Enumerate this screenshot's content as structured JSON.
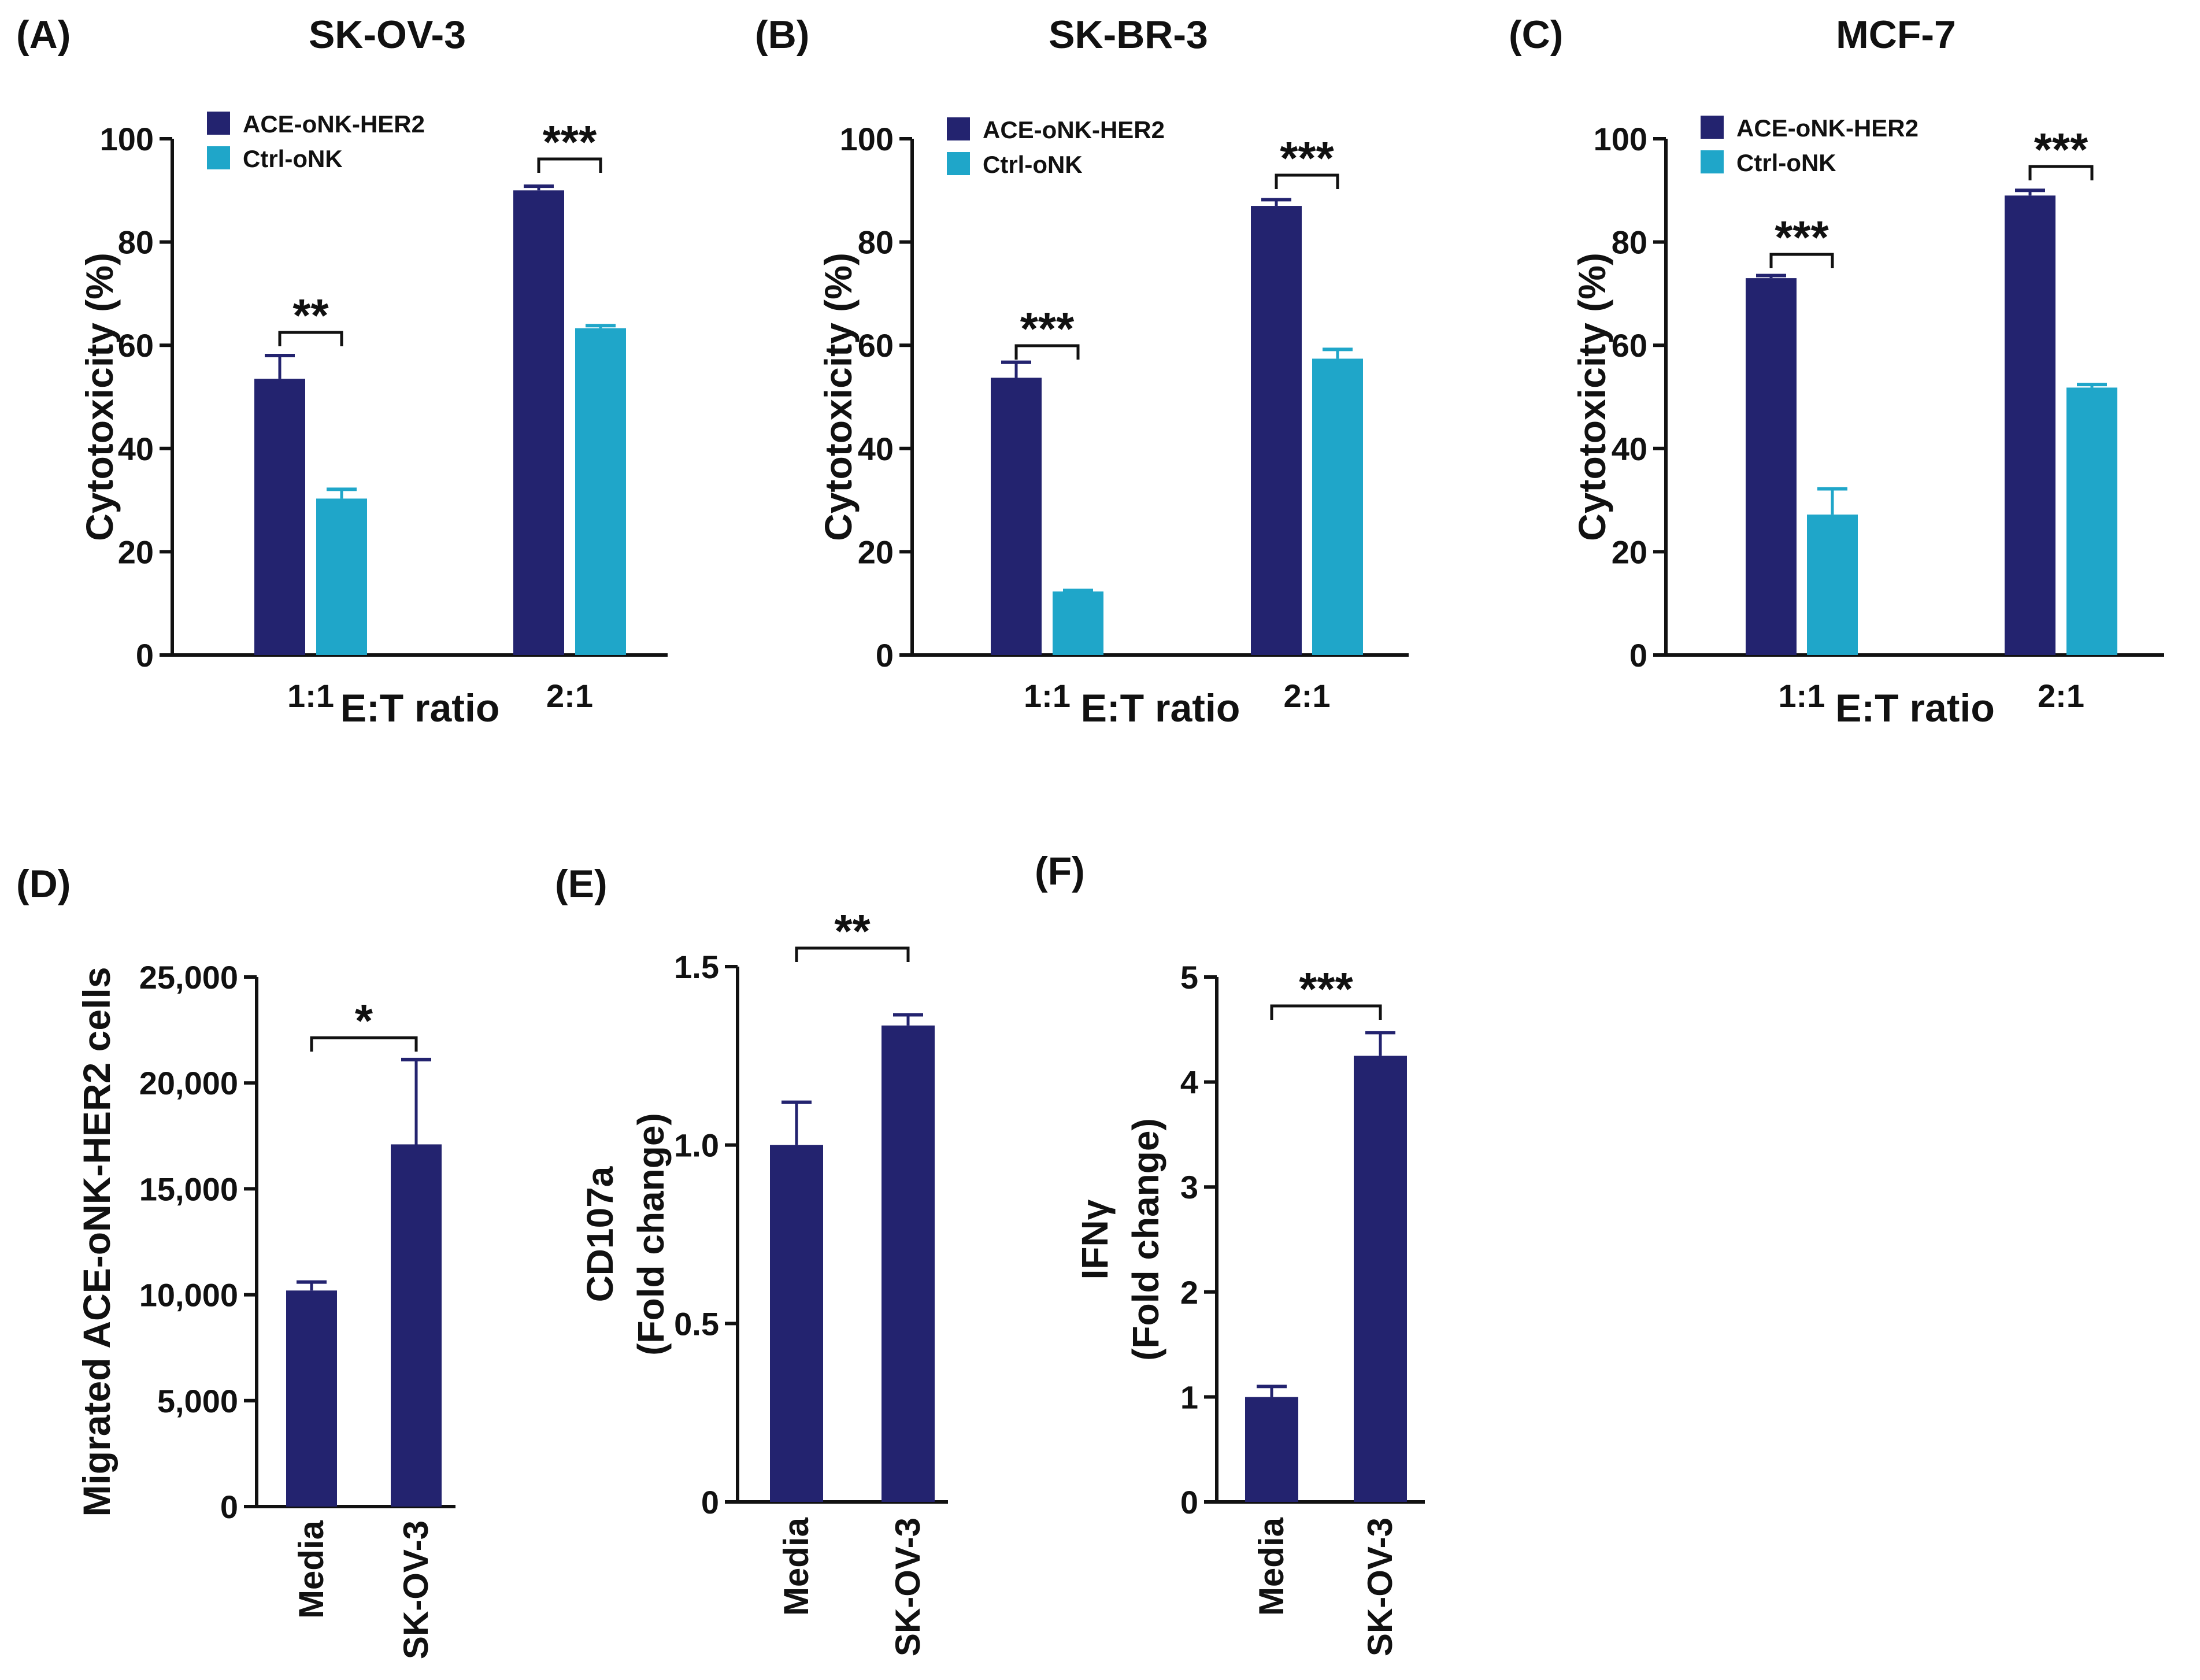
{
  "colors": {
    "ace": "#23236f",
    "ctrl": "#1fa6c9",
    "axis": "#111111"
  },
  "chart_data": [
    {
      "type": "bar",
      "panel_label": "(A)",
      "title": "SK-OV-3",
      "xlabel": "E:T ratio",
      "ylabel": "Cytotoxicity (%)",
      "categories": [
        "1:1",
        "2:1"
      ],
      "ylim": [
        0,
        100
      ],
      "yticks": [
        "0",
        "20",
        "40",
        "60",
        "80",
        "100"
      ],
      "series": [
        {
          "name": "ACE-oNK-HER2",
          "values": [
            53.5,
            90
          ],
          "errors": [
            4.5,
            0.8
          ]
        },
        {
          "name": "Ctrl-oNK",
          "values": [
            30.3,
            63.3
          ],
          "errors": [
            1.8,
            0.5
          ]
        }
      ],
      "significance": [
        "**",
        "***"
      ]
    },
    {
      "type": "bar",
      "panel_label": "(B)",
      "title": "SK-BR-3",
      "xlabel": "E:T ratio",
      "ylabel": "Cytotoxicity (%)",
      "categories": [
        "1:1",
        "2:1"
      ],
      "ylim": [
        0,
        100
      ],
      "yticks": [
        "0",
        "20",
        "40",
        "60",
        "80",
        "100"
      ],
      "series": [
        {
          "name": "ACE-oNK-HER2",
          "values": [
            53.7,
            87
          ],
          "errors": [
            3,
            1.2
          ]
        },
        {
          "name": "Ctrl-oNK",
          "values": [
            12.3,
            57.4
          ],
          "errors": [
            0.2,
            1.8
          ]
        }
      ],
      "significance": [
        "***",
        "***"
      ]
    },
    {
      "type": "bar",
      "panel_label": "(C)",
      "title": "MCF-7",
      "xlabel": "E:T ratio",
      "ylabel": "Cytotoxicity (%)",
      "categories": [
        "1:1",
        "2:1"
      ],
      "ylim": [
        0,
        100
      ],
      "yticks": [
        "0",
        "20",
        "40",
        "60",
        "80",
        "100"
      ],
      "series": [
        {
          "name": "ACE-oNK-HER2",
          "values": [
            73,
            89
          ],
          "errors": [
            0.5,
            1
          ]
        },
        {
          "name": "Ctrl-oNK",
          "values": [
            27.2,
            51.8
          ],
          "errors": [
            5,
            0.6
          ]
        }
      ],
      "significance": [
        "***",
        "***"
      ]
    },
    {
      "type": "bar",
      "panel_label": "(D)",
      "title": "",
      "xlabel": "",
      "ylabel": "Migrated ACE-oNK-HER2 cells",
      "categories": [
        "Media",
        "SK-OV-3"
      ],
      "ylim": [
        0,
        25000
      ],
      "yticks": [
        "0",
        "5,000",
        "10,000",
        "15,000",
        "20,000",
        "25,000"
      ],
      "series": [
        {
          "name": "ACE-oNK-HER2",
          "values": [
            10200,
            17100
          ],
          "errors": [
            400,
            4000
          ]
        }
      ],
      "significance": [
        "*"
      ]
    },
    {
      "type": "bar",
      "panel_label": "(E)",
      "title": "",
      "xlabel": "",
      "ylabel": [
        "CD107a",
        "(Fold change)"
      ],
      "categories": [
        "Media",
        "SK-OV-3"
      ],
      "ylim": [
        0,
        1.5
      ],
      "yticks": [
        "0",
        "0.5",
        "1.0",
        "1.5"
      ],
      "series": [
        {
          "name": "ACE-oNK-HER2",
          "values": [
            1.0,
            1.335
          ],
          "errors": [
            0.12,
            0.03
          ]
        }
      ],
      "significance": [
        "**"
      ]
    },
    {
      "type": "bar",
      "panel_label": "(F)",
      "title": "",
      "xlabel": "",
      "ylabel": [
        "IFNγ",
        "(Fold change)"
      ],
      "categories": [
        "Media",
        "SK-OV-3"
      ],
      "ylim": [
        0,
        5
      ],
      "yticks": [
        "0",
        "1",
        "2",
        "3",
        "4",
        "5"
      ],
      "series": [
        {
          "name": "ACE-oNK-HER2",
          "values": [
            1.0,
            4.25
          ],
          "errors": [
            0.1,
            0.22
          ]
        }
      ],
      "significance": [
        "***"
      ]
    }
  ]
}
